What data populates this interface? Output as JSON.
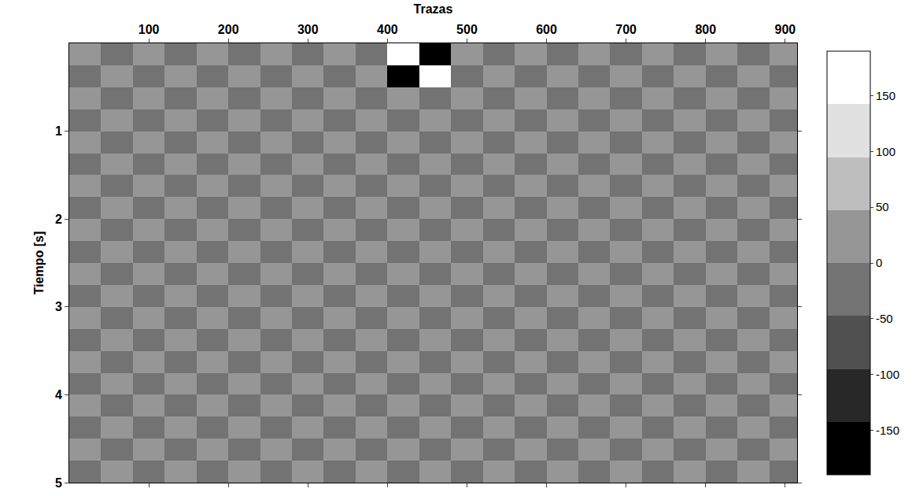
{
  "chart_data": {
    "type": "heatmap",
    "xlabel": "Trazas",
    "ylabel": "Tiempo [s]",
    "xlim": [
      0,
      915
    ],
    "xticks": [
      100,
      200,
      300,
      400,
      500,
      600,
      700,
      800,
      900
    ],
    "ylim": [
      0,
      5
    ],
    "yticks": [
      1,
      2,
      3,
      4,
      5
    ],
    "x": [
      20,
      60,
      100,
      140,
      180,
      220,
      260,
      300,
      340,
      380,
      420,
      460,
      500,
      540,
      580,
      620,
      660,
      700,
      740,
      780,
      820,
      860,
      900
    ],
    "y": [
      0.125,
      0.375,
      0.625,
      0.875,
      1.125,
      1.375,
      1.625,
      1.875,
      2.125,
      2.375,
      2.625,
      2.875,
      3.125,
      3.375,
      3.625,
      3.875,
      4.125,
      4.375,
      4.625,
      4.875
    ],
    "z": [
      [
        10,
        -15,
        20,
        -10,
        15,
        -20,
        10,
        -15,
        20,
        -10,
        180,
        -170,
        15,
        -10,
        20,
        -15,
        10,
        -20,
        15,
        -10,
        20,
        -15,
        10
      ],
      [
        -15,
        10,
        -20,
        15,
        -10,
        20,
        -15,
        10,
        -20,
        15,
        -160,
        150,
        -20,
        15,
        -10,
        20,
        -15,
        10,
        -20,
        15,
        -10,
        20,
        -15
      ],
      [
        12,
        -18,
        10,
        -12,
        18,
        -10,
        12,
        -18,
        10,
        -25,
        30,
        -30,
        25,
        -10,
        18,
        -12,
        10,
        -18,
        12,
        -10,
        18,
        -12,
        10
      ],
      [
        -10,
        15,
        -12,
        18,
        -15,
        10,
        -18,
        12,
        -15,
        28,
        -35,
        35,
        -28,
        15,
        -12,
        18,
        -10,
        15,
        -12,
        18,
        -15,
        10,
        -18
      ],
      [
        15,
        -12,
        18,
        -10,
        12,
        -15,
        10,
        -20,
        28,
        -32,
        38,
        -38,
        32,
        -28,
        20,
        -10,
        15,
        -12,
        18,
        -10,
        12,
        -15,
        10
      ],
      [
        -12,
        18,
        -15,
        10,
        -18,
        12,
        -22,
        28,
        -32,
        36,
        -40,
        40,
        -36,
        32,
        -28,
        22,
        -12,
        18,
        -15,
        10,
        -18,
        12,
        -15
      ],
      [
        20,
        -22,
        18,
        -20,
        22,
        -25,
        28,
        -30,
        34,
        -38,
        42,
        -42,
        38,
        -34,
        30,
        -28,
        25,
        -22,
        20,
        -18,
        22,
        -20,
        18
      ],
      [
        -22,
        20,
        -25,
        22,
        -28,
        30,
        -32,
        35,
        -38,
        40,
        -44,
        44,
        -40,
        38,
        -35,
        32,
        -30,
        28,
        -25,
        22,
        -20,
        25,
        -22
      ],
      [
        25,
        -22,
        28,
        -25,
        30,
        -32,
        35,
        -38,
        40,
        -42,
        45,
        -45,
        42,
        -40,
        38,
        -35,
        32,
        -30,
        28,
        -25,
        22,
        -28,
        25
      ],
      [
        -28,
        25,
        -30,
        28,
        -32,
        35,
        -38,
        40,
        -42,
        44,
        -46,
        46,
        -44,
        42,
        -40,
        38,
        -35,
        32,
        -30,
        28,
        -25,
        30,
        -28
      ],
      [
        30,
        -28,
        32,
        -30,
        35,
        -38,
        40,
        -42,
        44,
        -45,
        46,
        -46,
        45,
        -44,
        42,
        -40,
        38,
        -35,
        32,
        -30,
        28,
        -30,
        28
      ],
      [
        -30,
        32,
        -28,
        35,
        -38,
        40,
        -42,
        44,
        -45,
        46,
        -46,
        46,
        -46,
        45,
        -44,
        42,
        -40,
        38,
        -35,
        32,
        -30,
        28,
        -32
      ],
      [
        32,
        -30,
        35,
        -32,
        38,
        -40,
        42,
        -44,
        45,
        -46,
        46,
        -46,
        46,
        -45,
        44,
        -42,
        40,
        -38,
        35,
        -32,
        30,
        -32,
        30
      ],
      [
        -30,
        35,
        -32,
        38,
        -40,
        42,
        -44,
        45,
        -46,
        46,
        -46,
        46,
        -46,
        46,
        -45,
        44,
        -42,
        40,
        -38,
        35,
        -32,
        30,
        -35
      ],
      [
        35,
        -32,
        38,
        -35,
        40,
        -42,
        44,
        -45,
        46,
        -46,
        46,
        -46,
        46,
        -46,
        45,
        -44,
        42,
        -40,
        38,
        -35,
        32,
        -35,
        32
      ],
      [
        -32,
        38,
        -35,
        40,
        -42,
        44,
        -45,
        46,
        -46,
        46,
        -46,
        46,
        -46,
        46,
        -46,
        45,
        -44,
        42,
        -40,
        38,
        -35,
        32,
        -38
      ],
      [
        38,
        -35,
        40,
        -38,
        42,
        -44,
        45,
        -46,
        46,
        -46,
        46,
        -46,
        46,
        -46,
        46,
        -45,
        44,
        -42,
        40,
        -38,
        35,
        -38,
        35
      ],
      [
        -35,
        40,
        -38,
        42,
        -44,
        45,
        -46,
        46,
        -46,
        46,
        -46,
        46,
        -46,
        46,
        -46,
        46,
        -45,
        44,
        -42,
        40,
        -38,
        35,
        -40
      ],
      [
        40,
        -38,
        42,
        -40,
        44,
        -45,
        46,
        -46,
        46,
        -46,
        46,
        -46,
        46,
        -46,
        46,
        -46,
        45,
        -44,
        42,
        -40,
        38,
        -40,
        38
      ],
      [
        -38,
        42,
        -40,
        44,
        -45,
        46,
        -46,
        46,
        -46,
        46,
        -46,
        46,
        -46,
        46,
        -46,
        46,
        -46,
        45,
        -44,
        42,
        -40,
        38,
        -42
      ]
    ],
    "zlim": [
      -190,
      190
    ],
    "zticks": [
      -150,
      -100,
      -50,
      0,
      50,
      100,
      150
    ]
  }
}
